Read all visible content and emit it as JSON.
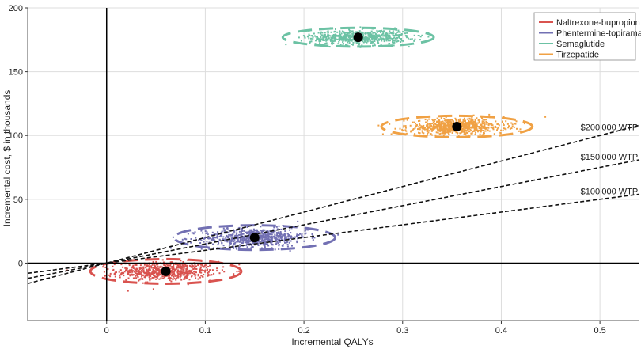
{
  "chart_data": {
    "type": "scatter",
    "title": "",
    "xlabel": "Incremental QALYs",
    "ylabel": "Incremental cost, $ in thousands",
    "xlim": [
      -0.08,
      0.54
    ],
    "ylim": [
      -45,
      200
    ],
    "x_ticks": [
      0,
      0.1,
      0.2,
      0.3,
      0.4,
      0.5
    ],
    "x_tick_labels": [
      "0",
      "0.1",
      "0.2",
      "0.3",
      "0.4",
      "0.5"
    ],
    "y_ticks": [
      0,
      50,
      100,
      150,
      200
    ],
    "y_tick_labels": [
      "0",
      "50",
      "100",
      "150",
      "200"
    ],
    "grid": true,
    "legend_position": "top-right",
    "series": [
      {
        "name": "Naltrexone-bupropion",
        "color": "#d9534f",
        "mean": [
          0.06,
          -6.5
        ],
        "spread": [
          0.045,
          5.5
        ],
        "count": 650
      },
      {
        "name": "Phentermine-topiramate",
        "color": "#7270b3",
        "mean": [
          0.15,
          20
        ],
        "spread": [
          0.048,
          5.5
        ],
        "count": 700
      },
      {
        "name": "Semaglutide",
        "color": "#6cc2a4",
        "mean": [
          0.255,
          177
        ],
        "spread": [
          0.045,
          4.2
        ],
        "count": 650
      },
      {
        "name": "Tirzepatide",
        "color": "#f0a144",
        "mean": [
          0.355,
          107
        ],
        "spread": [
          0.045,
          4.8
        ],
        "count": 750
      }
    ],
    "wtp_lines": [
      {
        "label": "$200 000 WTP",
        "slope": 200
      },
      {
        "label": "$150 000 WTP",
        "slope": 150
      },
      {
        "label": "$100 000 WTP",
        "slope": 100
      }
    ]
  }
}
